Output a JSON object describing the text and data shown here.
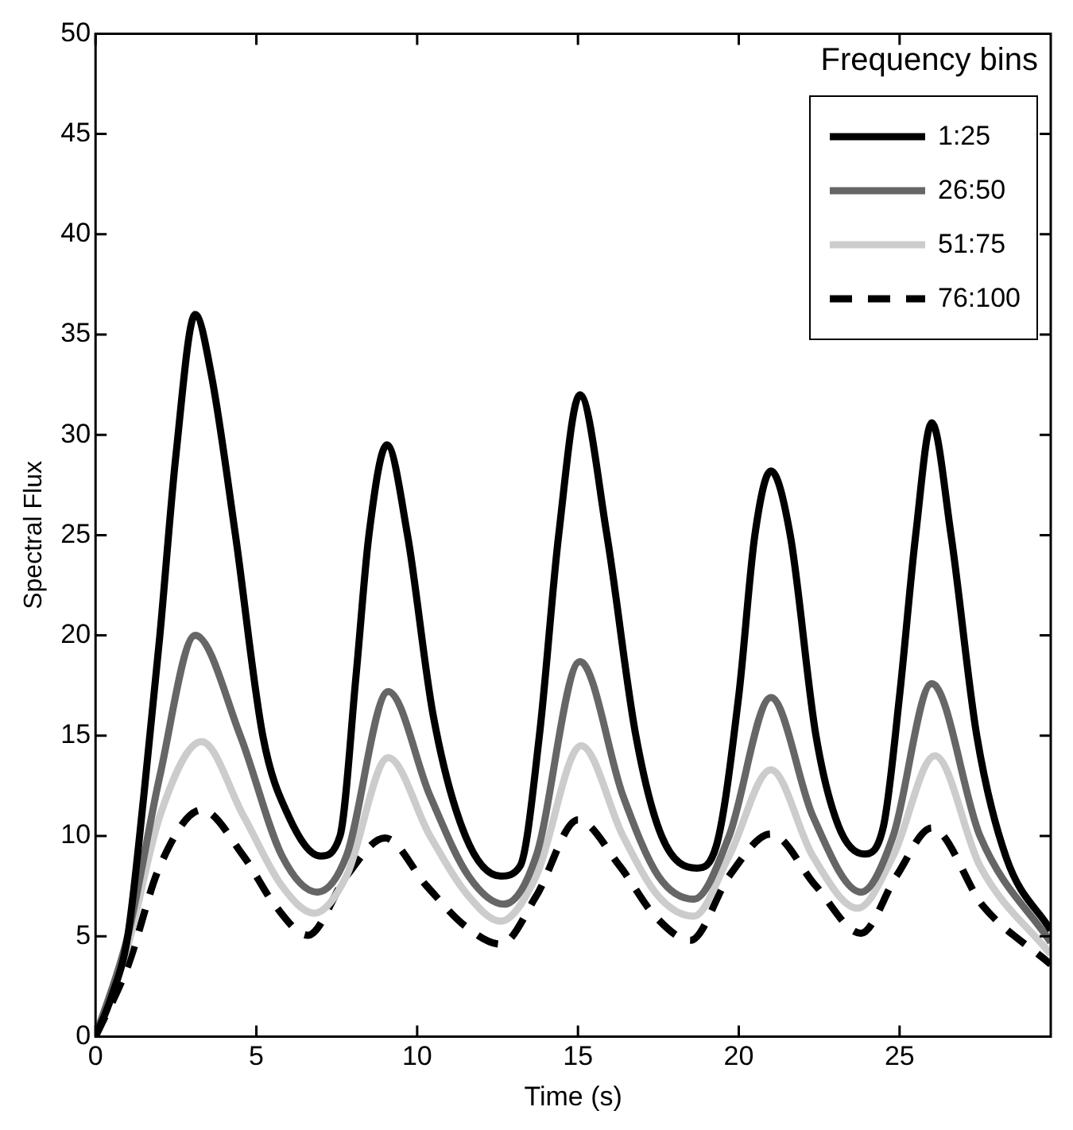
{
  "chart_data": {
    "type": "line",
    "xlabel": "Time (s)",
    "ylabel": "Spectral Flux",
    "legend_title": "Frequency bins",
    "legend": "top right",
    "grid": false,
    "marker": "none",
    "xlim": [
      0,
      29.7
    ],
    "xticks": [
      0,
      5,
      10,
      15,
      20,
      25
    ],
    "ylim": [
      0,
      50
    ],
    "yticks": [
      0,
      5,
      10,
      15,
      20,
      25,
      30,
      35,
      40,
      45,
      50
    ],
    "series": [
      {
        "name": "1:25",
        "color": "#000000",
        "line_style": "solid",
        "x": [
          0,
          0.5,
          1,
          1.5,
          2,
          2.5,
          3.1,
          3.6,
          4.35,
          5.2,
          6,
          7,
          7.6,
          8.1,
          8.5,
          9.06,
          9.7,
          10.5,
          11.5,
          12.6,
          13.2,
          13.8,
          14.4,
          15.06,
          15.9,
          16.8,
          17.6,
          18.7,
          19.3,
          20,
          20.5,
          21,
          21.6,
          22.4,
          23.1,
          23.9,
          24.5,
          25,
          25.5,
          26,
          26.6,
          27.4,
          28.3,
          29.7
        ],
        "values": [
          0,
          2,
          5,
          12,
          20,
          29,
          36,
          33,
          25,
          15,
          11,
          9,
          10,
          18,
          25,
          29.5,
          25,
          16,
          10,
          8,
          8.5,
          15,
          25,
          32,
          25,
          15,
          10,
          8.4,
          9.5,
          17,
          25,
          28.2,
          25,
          15,
          10.5,
          9.1,
          10.5,
          17,
          25,
          30.6,
          25,
          15,
          9,
          5.3
        ]
      },
      {
        "name": "26:50",
        "color": "#666666",
        "line_style": "solid",
        "x": [
          0,
          1,
          2,
          3.1,
          4.5,
          5.8,
          6.9,
          7.8,
          9.1,
          10.4,
          11.6,
          12.7,
          13.7,
          15.06,
          16.4,
          17.5,
          18.6,
          19.7,
          21,
          22.3,
          23.8,
          24.8,
          26,
          27.5,
          29.7
        ],
        "values": [
          0,
          5,
          13,
          20,
          15,
          9,
          7.2,
          9,
          17.2,
          12,
          8,
          6.6,
          9,
          18.7,
          12,
          8,
          6.85,
          10,
          16.9,
          11,
          7.2,
          10,
          17.6,
          10,
          4.7
        ]
      },
      {
        "name": "51:75",
        "color": "#cccccc",
        "line_style": "solid",
        "x": [
          0,
          1,
          2,
          3.3,
          4.6,
          5.8,
          6.8,
          7.8,
          9.1,
          10.4,
          11.6,
          12.6,
          13.7,
          15.1,
          16.4,
          17.5,
          18.6,
          19.7,
          21,
          22.3,
          23.7,
          24.8,
          26.1,
          27.5,
          29.7
        ],
        "values": [
          0,
          4.5,
          11,
          14.7,
          11,
          7.5,
          6.15,
          8,
          13.9,
          10,
          7,
          5.75,
          8,
          14.5,
          10,
          7,
          6,
          9,
          13.3,
          9,
          6.4,
          9,
          14,
          8.5,
          4.1
        ]
      },
      {
        "name": "76:100",
        "color": "#000000",
        "line_style": "dashed",
        "x": [
          0,
          1,
          2,
          3.3,
          4.6,
          5.6,
          6.6,
          7.8,
          9,
          10.3,
          11.5,
          12.6,
          13.7,
          15,
          16.3,
          17.4,
          18.5,
          19.7,
          21,
          22.4,
          23.8,
          24.9,
          26,
          27.6,
          29.7
        ],
        "values": [
          0,
          3.5,
          8.5,
          11.3,
          9,
          6.5,
          5.05,
          8,
          9.9,
          7.5,
          5.5,
          4.6,
          7,
          10.8,
          8.5,
          6,
          4.8,
          8,
          10.1,
          7.5,
          5.15,
          8,
          10.4,
          6.5,
          3.6
        ]
      }
    ]
  }
}
